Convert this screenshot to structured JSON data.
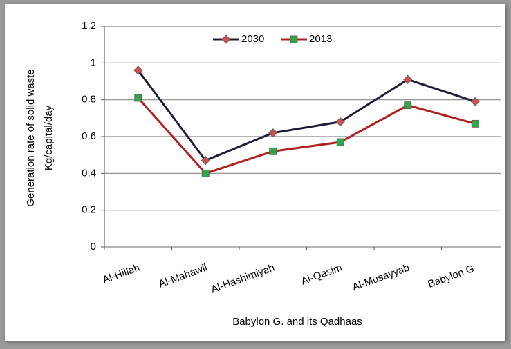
{
  "chart_data": {
    "type": "line",
    "y_label": [
      "Generation rate of solid waste",
      "Kg/capital/day"
    ],
    "x_label": "Babylon G. and its Qadhaas",
    "categories": [
      "Al-Hillah",
      "Al-Mahawil",
      "Al-Hashimiyah",
      "Al-Qasim",
      "Al-Musayyab",
      "Babylon G."
    ],
    "series": [
      {
        "name": "2030",
        "color": "#1c1c3c",
        "marker": "diamond",
        "marker_color": "#d0504d",
        "values": [
          0.96,
          0.47,
          0.62,
          0.68,
          0.91,
          0.79
        ]
      },
      {
        "name": "2013",
        "color": "#b3201c",
        "marker": "square",
        "marker_color": "#2fa84a",
        "values": [
          0.81,
          0.4,
          0.52,
          0.57,
          0.77,
          0.67
        ]
      }
    ],
    "ylim": [
      0,
      1.2
    ],
    "yticks": [
      0,
      0.2,
      0.4,
      0.6,
      0.8,
      1,
      1.2
    ],
    "grid": true
  }
}
